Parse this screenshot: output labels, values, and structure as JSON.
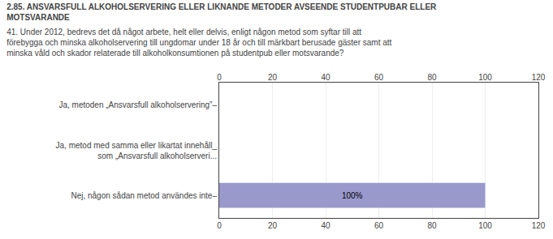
{
  "chart_data": {
    "type": "bar",
    "orientation": "horizontal",
    "title": "2.85. ANSVARSFULL ALKOHOLSERVERING ELLER LIKNANDE METODER AVSEENDE STUDENTPUBAR ELLER\nMOTSVARANDE",
    "subtitle": "41. Under 2012, bedrevs det då något arbete, helt eller delvis, enligt någon metod som syftar till att\nförebygga och minska alkoholservering till ungdomar under 18 år och till märkbart berusade gäster samt att\nminska våld och skador relaterade till alkoholkonsumtionen på studentpub eller motsvarande?",
    "categories": [
      "Ja, metoden „Ansvarsfull alkoholservering”–",
      "Ja, metod med samma eller likartat innehåll_\nsom „Ansvarsfull alkoholserveri...",
      "Nej, någon sådan metod användes inte–"
    ],
    "values": [
      0,
      0,
      100
    ],
    "value_labels": [
      null,
      null,
      "100%"
    ],
    "data_labels": true,
    "color": "#9999cc",
    "xlim": [
      0,
      120
    ],
    "xticks": [
      0,
      20,
      40,
      60,
      80,
      100,
      120
    ],
    "grid": true
  }
}
